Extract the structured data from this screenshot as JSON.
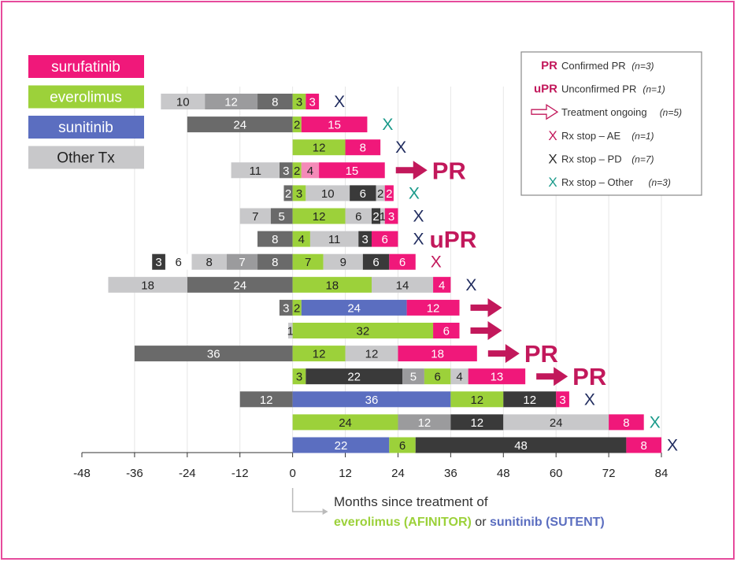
{
  "chart_data": {
    "type": "bar",
    "subtype": "swimmer-stacked-horizontal",
    "xlim": [
      -48,
      84
    ],
    "xticks": [
      -48,
      -36,
      -24,
      -12,
      0,
      12,
      24,
      36,
      48,
      60,
      72,
      84
    ],
    "grid": true,
    "xlabel": {
      "line1": "Months since treatment of",
      "part_a": "everolimus (AFINITOR)",
      "part_or": " or ",
      "part_b": "sunitinib (SUTENT)"
    },
    "legend_treatments": [
      {
        "name": "surufatinib",
        "color": "#f0187a"
      },
      {
        "name": "everolimus",
        "color": "#9cd13a"
      },
      {
        "name": "sunitinib",
        "color": "#5b6ec0"
      },
      {
        "name": "Other Tx",
        "color": "#c8c8ca"
      }
    ],
    "legend_outcomes": [
      {
        "symbol": "PR",
        "text": "Confirmed PR",
        "n": "(n=3)"
      },
      {
        "symbol": "uPR",
        "text": "Unconfirmed PR",
        "n": "(n=1)"
      },
      {
        "symbol": "arrow",
        "text": "Treatment ongoing",
        "n": "(n=5)"
      },
      {
        "symbol": "X",
        "color": "#c2185b",
        "text": "Rx stop – AE",
        "n": "(n=1)"
      },
      {
        "symbol": "X",
        "color": "#2b2b2b",
        "text": "Rx stop – PD",
        "n": "(n=7)"
      },
      {
        "symbol": "X",
        "color": "#1a9a8a",
        "text": "Rx stop – Other",
        "n": "(n=3)"
      }
    ],
    "colors": {
      "dark_other": "#6a6a6a",
      "mid_other": "#9b9b9d",
      "light_other": "#c8c8ca",
      "black_other": "#3a3a3a",
      "light_pink": "#f48ab8",
      "pr_text": "#c2185b",
      "x_dark": "#1f2b5e",
      "x_teal": "#1a9a8a",
      "x_pink": "#c2185b"
    },
    "patients": [
      {
        "prior": [
          {
            "v": 8,
            "c": "dark_other"
          },
          {
            "v": 12,
            "c": "mid_other"
          },
          {
            "v": 10,
            "c": "light_other"
          }
        ],
        "post": [
          {
            "v": 3,
            "c": "everolimus"
          },
          {
            "v": 3,
            "c": "surufatinib"
          }
        ],
        "end": {
          "type": "X",
          "c": "x_dark"
        }
      },
      {
        "prior": [
          {
            "v": 24,
            "c": "dark_other"
          }
        ],
        "post": [
          {
            "v": 2,
            "c": "everolimus"
          },
          {
            "v": 15,
            "c": "surufatinib"
          }
        ],
        "end": {
          "type": "X",
          "c": "x_teal"
        }
      },
      {
        "prior": [],
        "post": [
          {
            "v": 12,
            "c": "everolimus"
          },
          {
            "v": 8,
            "c": "surufatinib"
          }
        ],
        "end": {
          "type": "X",
          "c": "x_dark"
        }
      },
      {
        "prior": [
          {
            "v": 3,
            "c": "dark_other"
          },
          {
            "v": 11,
            "c": "light_other"
          }
        ],
        "post": [
          {
            "v": 2,
            "c": "everolimus"
          },
          {
            "v": 4,
            "c": "light_pink"
          },
          {
            "v": 15,
            "c": "surufatinib"
          }
        ],
        "end": {
          "type": "arrow",
          "label": "PR"
        }
      },
      {
        "prior": [
          {
            "v": 2,
            "c": "dark_other"
          }
        ],
        "post": [
          {
            "v": 3,
            "c": "everolimus"
          },
          {
            "v": 10,
            "c": "light_other"
          },
          {
            "v": 6,
            "c": "black_other"
          },
          {
            "v": 2,
            "c": "light_other"
          },
          {
            "v": 2,
            "c": "surufatinib"
          }
        ],
        "end": {
          "type": "X",
          "c": "x_teal"
        }
      },
      {
        "prior": [
          {
            "v": 5,
            "c": "dark_other"
          },
          {
            "v": 7,
            "c": "light_other"
          }
        ],
        "post": [
          {
            "v": 12,
            "c": "everolimus"
          },
          {
            "v": 6,
            "c": "light_other"
          },
          {
            "v": 2,
            "c": "black_other"
          },
          {
            "v": 1,
            "c": "light_other"
          },
          {
            "v": 3,
            "c": "surufatinib"
          }
        ],
        "end": {
          "type": "X",
          "c": "x_dark"
        }
      },
      {
        "prior": [
          {
            "v": 8,
            "c": "dark_other"
          }
        ],
        "post": [
          {
            "v": 4,
            "c": "everolimus"
          },
          {
            "v": 11,
            "c": "light_other"
          },
          {
            "v": 3,
            "c": "black_other"
          },
          {
            "v": 6,
            "c": "surufatinib"
          }
        ],
        "end": {
          "type": "X",
          "c": "x_dark",
          "label": "uPR"
        }
      },
      {
        "prior": [
          {
            "v": 8,
            "c": "dark_other"
          },
          {
            "v": 7,
            "c": "mid_other"
          },
          {
            "v": 8,
            "c": "light_other"
          },
          {
            "v": 6,
            "c": "white"
          },
          {
            "v": 3,
            "c": "black_other"
          }
        ],
        "post": [
          {
            "v": 7,
            "c": "everolimus"
          },
          {
            "v": 9,
            "c": "light_other"
          },
          {
            "v": 6,
            "c": "black_other"
          },
          {
            "v": 6,
            "c": "surufatinib"
          }
        ],
        "end": {
          "type": "X",
          "c": "x_pink"
        }
      },
      {
        "prior": [
          {
            "v": 24,
            "c": "dark_other"
          },
          {
            "v": 18,
            "c": "light_other"
          }
        ],
        "post": [
          {
            "v": 18,
            "c": "everolimus"
          },
          {
            "v": 14,
            "c": "light_other"
          },
          {
            "v": 4,
            "c": "surufatinib"
          }
        ],
        "end": {
          "type": "X",
          "c": "x_dark"
        }
      },
      {
        "prior": [
          {
            "v": 3,
            "c": "dark_other"
          }
        ],
        "post": [
          {
            "v": 2,
            "c": "everolimus"
          },
          {
            "v": 24,
            "c": "sunitinib"
          },
          {
            "v": 12,
            "c": "surufatinib"
          }
        ],
        "end": {
          "type": "arrow"
        }
      },
      {
        "prior": [
          {
            "v": 1,
            "c": "light_other"
          }
        ],
        "post": [
          {
            "v": 32,
            "c": "everolimus"
          },
          {
            "v": 6,
            "c": "surufatinib"
          }
        ],
        "end": {
          "type": "arrow"
        }
      },
      {
        "prior": [
          {
            "v": 36,
            "c": "dark_other"
          }
        ],
        "post": [
          {
            "v": 12,
            "c": "everolimus"
          },
          {
            "v": 12,
            "c": "light_other"
          },
          {
            "v": 18,
            "c": "surufatinib"
          }
        ],
        "end": {
          "type": "arrow",
          "label": "PR"
        }
      },
      {
        "prior": [],
        "post": [
          {
            "v": 3,
            "c": "everolimus"
          },
          {
            "v": 22,
            "c": "black_other"
          },
          {
            "v": 5,
            "c": "mid_other"
          },
          {
            "v": 6,
            "c": "everolimus"
          },
          {
            "v": 4,
            "c": "light_other"
          },
          {
            "v": 13,
            "c": "surufatinib"
          }
        ],
        "end": {
          "type": "arrow",
          "label": "PR"
        }
      },
      {
        "prior": [
          {
            "v": 12,
            "c": "dark_other"
          }
        ],
        "post": [
          {
            "v": 36,
            "c": "sunitinib"
          },
          {
            "v": 12,
            "c": "everolimus"
          },
          {
            "v": 12,
            "c": "black_other"
          },
          {
            "v": 3,
            "c": "surufatinib"
          }
        ],
        "end": {
          "type": "X",
          "c": "x_dark"
        }
      },
      {
        "prior": [],
        "post": [
          {
            "v": 24,
            "c": "everolimus"
          },
          {
            "v": 12,
            "c": "mid_other"
          },
          {
            "v": 12,
            "c": "black_other"
          },
          {
            "v": 24,
            "c": "light_other"
          },
          {
            "v": 8,
            "c": "surufatinib"
          }
        ],
        "end": {
          "type": "X",
          "c": "x_teal"
        }
      },
      {
        "prior": [],
        "post": [
          {
            "v": 22,
            "c": "sunitinib"
          },
          {
            "v": 6,
            "c": "everolimus"
          },
          {
            "v": 48,
            "c": "black_other"
          },
          {
            "v": 8,
            "c": "surufatinib"
          }
        ],
        "end": {
          "type": "X",
          "c": "x_dark"
        }
      }
    ]
  }
}
